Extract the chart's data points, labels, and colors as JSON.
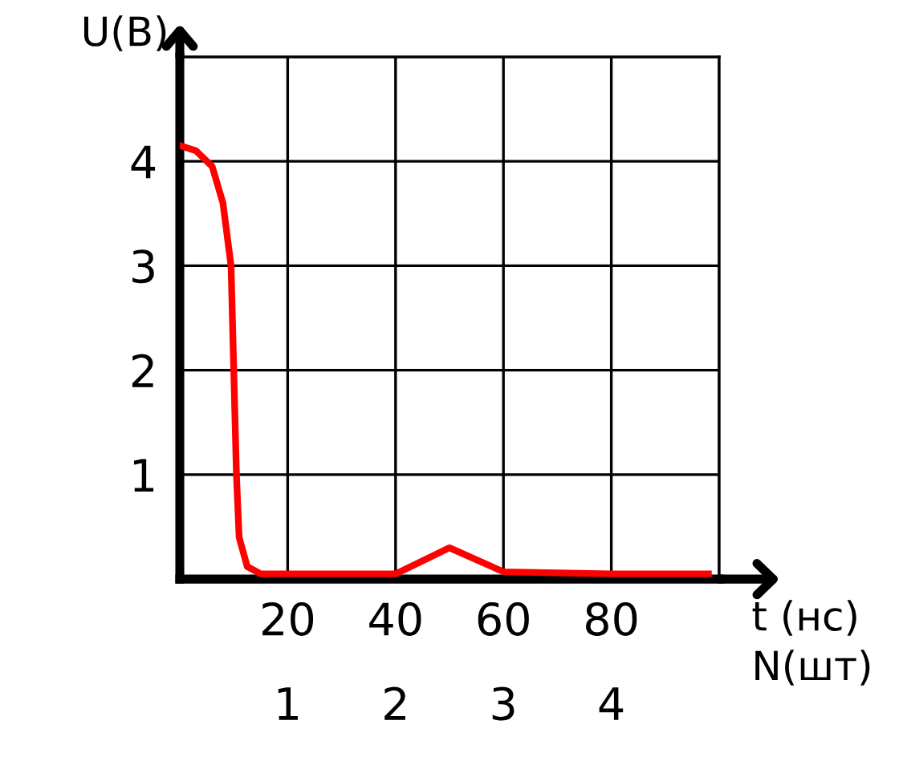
{
  "chart_data": {
    "type": "line",
    "xlabel": "t (нс)",
    "ylabel": "U(В)",
    "x2label": "N(шт)",
    "x": [
      0,
      3,
      6,
      8,
      9.5,
      10,
      10.5,
      11,
      12.5,
      15,
      20,
      40,
      50,
      60,
      80,
      98
    ],
    "series": [
      {
        "color": "#ff0000",
        "values": [
          4.15,
          4.1,
          3.95,
          3.6,
          3,
          2,
          1,
          0.4,
          0.12,
          0.05,
          0.05,
          0.05,
          0.3,
          0.07,
          0.05,
          0.05
        ]
      }
    ],
    "xlim": [
      0,
      100
    ],
    "ylim": [
      0,
      5
    ],
    "xticks": [
      20,
      40,
      60,
      80,
      {
        "value": 100,
        "label": null
      }
    ],
    "yticks": [
      1,
      2,
      3,
      4,
      {
        "value": 5,
        "label": null
      }
    ],
    "x2lim": [
      0,
      5
    ],
    "x2ticks": [
      1,
      2,
      3,
      4
    ],
    "grid": true,
    "marker": "none",
    "line_style": "solid",
    "legend": false
  }
}
